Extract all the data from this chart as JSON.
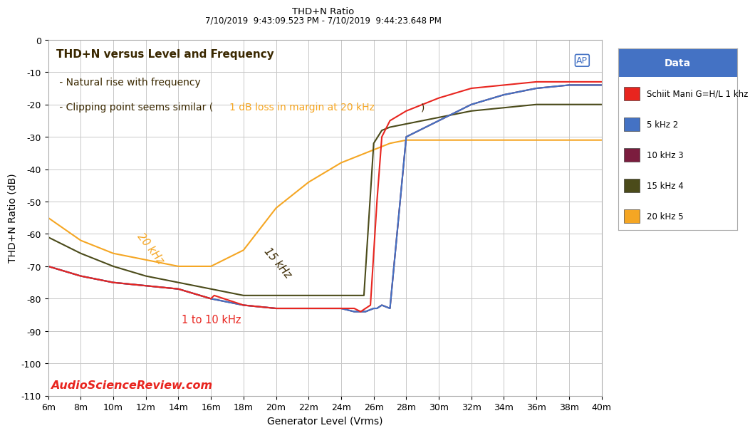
{
  "title_top": "THD+N Ratio",
  "title_date": "7/10/2019  9:43:09.523 PM - 7/10/2019  9:44:23.648 PM",
  "annotation_main": "THD+N versus Level and Frequency",
  "annotation_line1": " - Natural rise with frequency",
  "annotation_line2_pre": " - Clipping point seems similar (",
  "annotation_line2_orange": "1 dB loss in margin at 20 kHz",
  "annotation_line2_post": ")",
  "annotation_label_1to10": "1 to 10 kHz",
  "annotation_label_15k": "15 kHz",
  "annotation_label_20k": "20 kHz",
  "xlabel": "Generator Level (Vrms)",
  "ylabel": "THD+N Ratio (dB)",
  "watermark": "AudioScienceReview.com",
  "xlim": [
    0.006,
    0.04
  ],
  "ylim": [
    -110,
    0
  ],
  "yticks": [
    0,
    -10,
    -20,
    -30,
    -40,
    -50,
    -60,
    -70,
    -80,
    -90,
    -100,
    -110
  ],
  "xtick_labels": [
    "6m",
    "8m",
    "10m",
    "12m",
    "14m",
    "16m",
    "18m",
    "20m",
    "22m",
    "24m",
    "26m",
    "28m",
    "30m",
    "32m",
    "34m",
    "36m",
    "38m",
    "40m"
  ],
  "xtick_values": [
    0.006,
    0.008,
    0.01,
    0.012,
    0.014,
    0.016,
    0.018,
    0.02,
    0.022,
    0.024,
    0.026,
    0.028,
    0.03,
    0.032,
    0.034,
    0.036,
    0.038,
    0.04
  ],
  "legend_title": "Data",
  "legend_header_color": "#4472c4",
  "legend_entries": [
    {
      "label": "Schiit Mani G=H/L 1 khz",
      "color": "#e8251f"
    },
    {
      "label": "5 kHz 2",
      "color": "#4472c4"
    },
    {
      "label": "10 kHz 3",
      "color": "#7b1c3e"
    },
    {
      "label": "15 kHz 4",
      "color": "#4b4b1a"
    },
    {
      "label": "20 kHz 5",
      "color": "#f5a623"
    }
  ],
  "bg_color": "#ffffff",
  "plot_bg_color": "#ffffff",
  "grid_color": "#c8c8c8",
  "series": {
    "1khz": {
      "color": "#e8251f",
      "x": [
        0.006,
        0.008,
        0.01,
        0.012,
        0.014,
        0.016,
        0.0162,
        0.018,
        0.02,
        0.022,
        0.024,
        0.0248,
        0.0252,
        0.0255,
        0.0258,
        0.0262,
        0.0265,
        0.027,
        0.028,
        0.03,
        0.032,
        0.034,
        0.036,
        0.038,
        0.04
      ],
      "y": [
        -70,
        -73,
        -75,
        -76,
        -77,
        -80,
        -79,
        -82,
        -83,
        -83,
        -83,
        -83,
        -84,
        -83,
        -82,
        -50,
        -30,
        -25,
        -22,
        -18,
        -15,
        -14,
        -13,
        -13,
        -13
      ]
    },
    "5khz": {
      "color": "#4472c4",
      "x": [
        0.006,
        0.008,
        0.01,
        0.012,
        0.014,
        0.016,
        0.018,
        0.02,
        0.022,
        0.024,
        0.0248,
        0.0252,
        0.0255,
        0.026,
        0.0262,
        0.0265,
        0.027,
        0.028,
        0.03,
        0.032,
        0.034,
        0.036,
        0.038,
        0.04
      ],
      "y": [
        -70,
        -73,
        -75,
        -76,
        -77,
        -80,
        -82,
        -83,
        -83,
        -83,
        -84,
        -84,
        -84,
        -83,
        -83,
        -82,
        -83,
        -30,
        -25,
        -20,
        -17,
        -15,
        -14,
        -14
      ]
    },
    "10khz": {
      "color": "#7b1c3e",
      "x": [
        0.006,
        0.008,
        0.01,
        0.012,
        0.014,
        0.016,
        0.018,
        0.02,
        0.022,
        0.024,
        0.0248,
        0.0252,
        0.0255,
        0.026,
        0.0262,
        0.0265,
        0.027,
        0.028,
        0.03,
        0.032,
        0.034,
        0.036,
        0.038,
        0.04
      ],
      "y": [
        -70,
        -73,
        -75,
        -76,
        -77,
        -80,
        -82,
        -83,
        -83,
        -83,
        -84,
        -84,
        -84,
        -83,
        -83,
        -82,
        -83,
        -30,
        -25,
        -20,
        -17,
        -15,
        -14,
        -14
      ]
    },
    "15khz": {
      "color": "#4b4b1a",
      "x": [
        0.006,
        0.008,
        0.01,
        0.012,
        0.014,
        0.016,
        0.018,
        0.02,
        0.022,
        0.024,
        0.0248,
        0.025,
        0.0252,
        0.0254,
        0.026,
        0.0265,
        0.027,
        0.028,
        0.03,
        0.032,
        0.034,
        0.036,
        0.038,
        0.04
      ],
      "y": [
        -61,
        -66,
        -70,
        -73,
        -75,
        -77,
        -79,
        -79,
        -79,
        -79,
        -79,
        -79,
        -79,
        -79,
        -32,
        -28,
        -27,
        -26,
        -24,
        -22,
        -21,
        -20,
        -20,
        -20
      ]
    },
    "20khz": {
      "color": "#f5a623",
      "x": [
        0.006,
        0.008,
        0.01,
        0.012,
        0.014,
        0.016,
        0.018,
        0.02,
        0.022,
        0.024,
        0.025,
        0.026,
        0.027,
        0.028,
        0.03,
        0.032,
        0.034,
        0.036,
        0.038,
        0.04
      ],
      "y": [
        -55,
        -62,
        -66,
        -68,
        -70,
        -70,
        -65,
        -52,
        -44,
        -38,
        -36,
        -34,
        -32,
        -31,
        -31,
        -31,
        -31,
        -31,
        -31,
        -31
      ]
    }
  }
}
